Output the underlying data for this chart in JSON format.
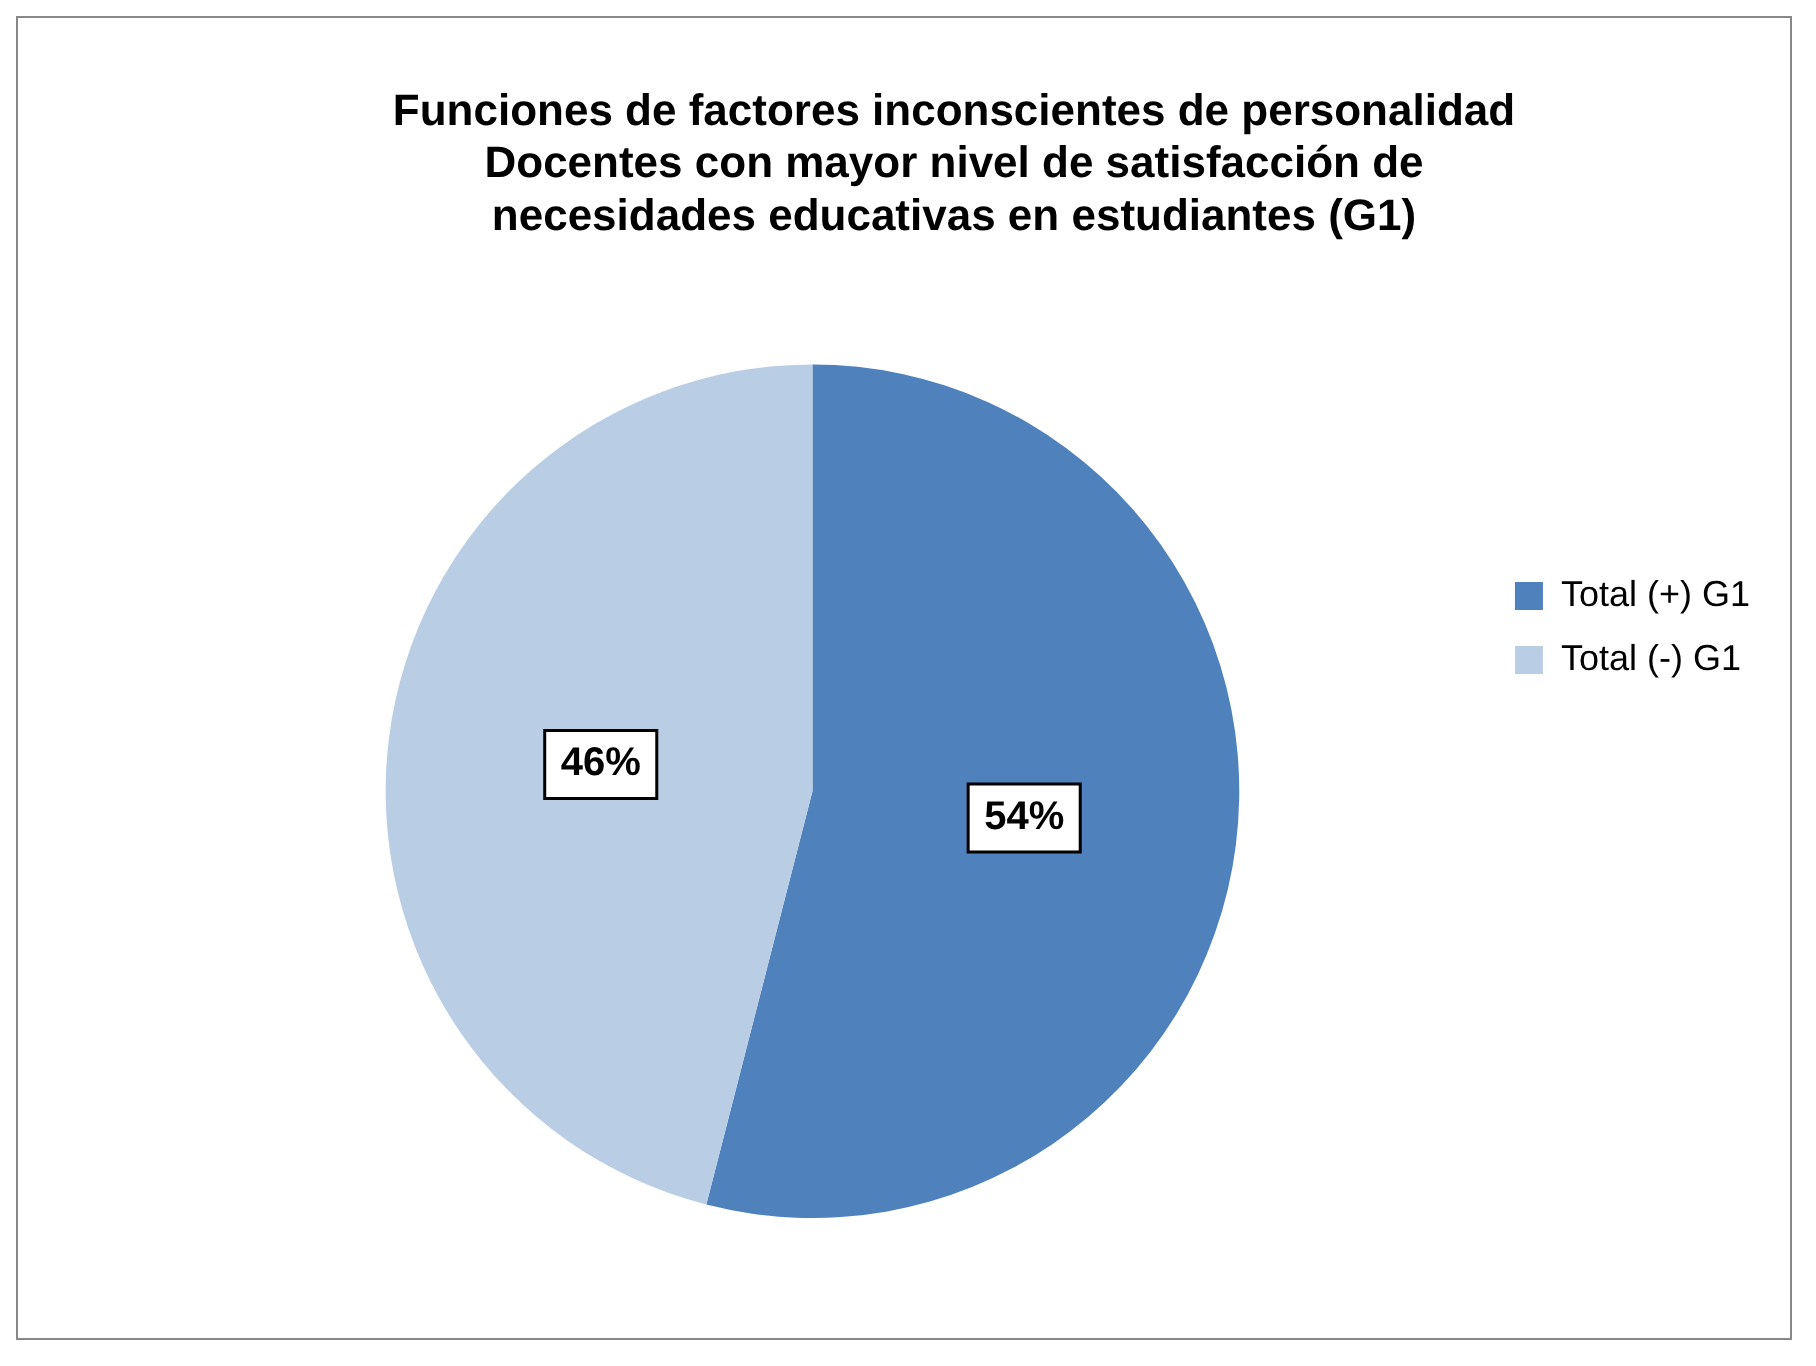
{
  "chart_data": {
    "type": "pie",
    "title": "Funciones de factores inconscientes de personalidad\nDocentes con mayor nivel de satisfacción de\nnecesidades educativas en estudiantes (G1)",
    "categories": [
      "Total (+) G1",
      "Total (-) G1"
    ],
    "values": [
      54,
      46
    ],
    "value_labels": [
      "54%",
      "46%"
    ],
    "colors": [
      "#4f81bd",
      "#b9cde5"
    ],
    "legend": "right"
  }
}
